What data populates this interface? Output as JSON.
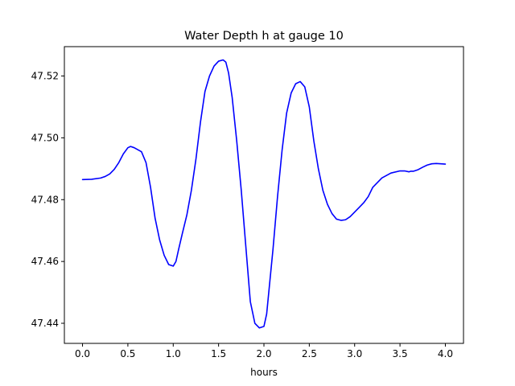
{
  "chart_data": {
    "type": "line",
    "title": "Water Depth h at gauge 10",
    "xlabel": "hours",
    "ylabel": "",
    "xlim": [
      -0.2,
      4.2
    ],
    "ylim": [
      47.4335,
      47.5295
    ],
    "xticks": [
      0.0,
      0.5,
      1.0,
      1.5,
      2.0,
      2.5,
      3.0,
      3.5,
      4.0
    ],
    "xtick_labels": [
      "0.0",
      "0.5",
      "1.0",
      "1.5",
      "2.0",
      "2.5",
      "3.0",
      "3.5",
      "4.0"
    ],
    "yticks": [
      47.44,
      47.46,
      47.48,
      47.5,
      47.52
    ],
    "ytick_labels": [
      "47.44",
      "47.46",
      "47.48",
      "47.50",
      "47.52"
    ],
    "grid": false,
    "legend": "none",
    "series": [
      {
        "color": "#0000ff",
        "x": [
          0.0,
          0.1,
          0.2,
          0.25,
          0.3,
          0.35,
          0.4,
          0.45,
          0.5,
          0.53,
          0.57,
          0.6,
          0.65,
          0.7,
          0.75,
          0.8,
          0.85,
          0.9,
          0.95,
          1.0,
          1.03,
          1.06,
          1.1,
          1.15,
          1.2,
          1.25,
          1.3,
          1.35,
          1.4,
          1.45,
          1.5,
          1.55,
          1.58,
          1.61,
          1.65,
          1.7,
          1.75,
          1.8,
          1.85,
          1.9,
          1.95,
          2.0,
          2.03,
          2.06,
          2.1,
          2.15,
          2.2,
          2.25,
          2.3,
          2.35,
          2.4,
          2.45,
          2.5,
          2.55,
          2.6,
          2.65,
          2.7,
          2.75,
          2.8,
          2.85,
          2.9,
          2.95,
          3.0,
          3.05,
          3.1,
          3.15,
          3.2,
          3.3,
          3.4,
          3.5,
          3.55,
          3.6,
          3.62,
          3.65,
          3.7,
          3.75,
          3.8,
          3.85,
          3.9,
          3.95,
          4.0
        ],
        "y": [
          47.4865,
          47.4866,
          47.487,
          47.4875,
          47.4883,
          47.4898,
          47.492,
          47.4948,
          47.4968,
          47.4972,
          47.4968,
          47.4963,
          47.4955,
          47.492,
          47.484,
          47.474,
          47.467,
          47.462,
          47.459,
          47.4585,
          47.46,
          47.464,
          47.469,
          47.475,
          47.483,
          47.493,
          47.505,
          47.515,
          47.52,
          47.5232,
          47.5248,
          47.5252,
          47.5245,
          47.521,
          47.513,
          47.499,
          47.483,
          47.465,
          47.447,
          47.44,
          47.4385,
          47.439,
          47.443,
          47.452,
          47.464,
          47.481,
          47.496,
          47.508,
          47.5145,
          47.5175,
          47.5182,
          47.5165,
          47.51,
          47.499,
          47.49,
          47.483,
          47.4785,
          47.4755,
          47.4737,
          47.4733,
          47.4735,
          47.4745,
          47.476,
          47.4775,
          47.479,
          47.481,
          47.484,
          47.487,
          47.4886,
          47.4893,
          47.4893,
          47.489,
          47.4892,
          47.4892,
          47.4897,
          47.4905,
          47.4912,
          47.4916,
          47.4917,
          47.4916,
          47.4915
        ]
      }
    ]
  }
}
